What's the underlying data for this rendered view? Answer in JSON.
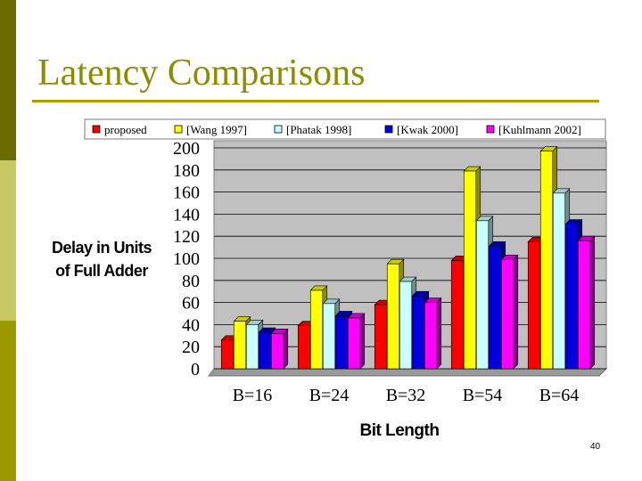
{
  "slide": {
    "title": "Latency Comparisons",
    "page_number": "40"
  },
  "colors": {
    "sidebar": [
      "#6b6b00",
      "#c8c864",
      "#9a9a00"
    ],
    "title": "#8c8c00",
    "plot_background": "#c0c0c0",
    "gridline": "#000000"
  },
  "chart_data": {
    "type": "bar",
    "title": "",
    "xlabel": "Bit Length",
    "ylabel": "Delay in Units of Full Adder",
    "ylim": [
      0,
      200
    ],
    "yticks": [
      0,
      20,
      40,
      60,
      80,
      100,
      120,
      140,
      160,
      180,
      200
    ],
    "grid": true,
    "legend_position": "top",
    "style": "3d-clustered-column",
    "categories": [
      "B=16",
      "B=24",
      "B=32",
      "B=54",
      "B=64"
    ],
    "series": [
      {
        "name": "proposed",
        "color": "#ff0000",
        "values": [
          26,
          39,
          58,
          98,
          115
        ]
      },
      {
        "name": "[Wang 1997]",
        "color": "#ffff00",
        "values": [
          43,
          71,
          95,
          179,
          197
        ]
      },
      {
        "name": "[Phatak 1998]",
        "color": "#ccffff",
        "values": [
          40,
          59,
          79,
          134,
          159
        ]
      },
      {
        "name": "[Kwak 2000]",
        "color": "#0000dd",
        "values": [
          33,
          48,
          66,
          111,
          131
        ]
      },
      {
        "name": "[Kuhlmann 2002]",
        "color": "#ff00ff",
        "values": [
          32,
          46,
          60,
          99,
          116
        ]
      }
    ]
  }
}
